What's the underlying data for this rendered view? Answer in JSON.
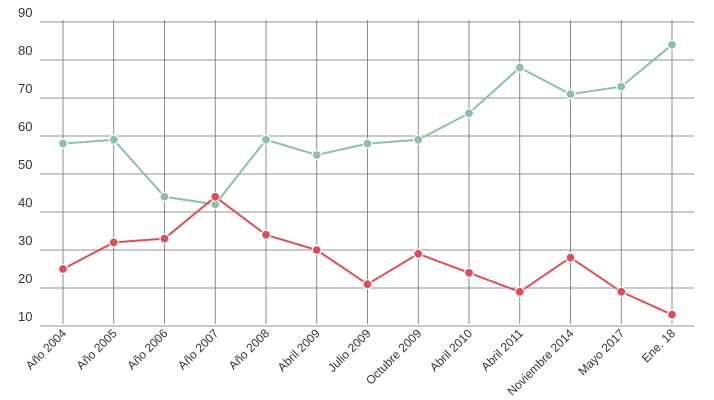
{
  "chart_data": {
    "type": "line",
    "categories": [
      "Año 2004",
      "Año 2005",
      "Año 2006",
      "Año 2007",
      "Año 2008",
      "Abril 2009",
      "Julio 2009",
      "Octubre 2009",
      "Abril 2010",
      "Abril 2011",
      "Noviembre 2014",
      "Mayo 2017",
      "Ene. 18"
    ],
    "series": [
      {
        "color": "#8fbfa5",
        "values": [
          58,
          59,
          44,
          42,
          59,
          55,
          58,
          59,
          66,
          78,
          71,
          73,
          84
        ]
      },
      {
        "color": "#d9505a",
        "values": [
          25,
          32,
          33,
          44,
          34,
          30,
          21,
          29,
          24,
          19,
          28,
          19,
          13
        ]
      }
    ],
    "y_ticks": [
      90,
      80,
      70,
      60,
      50,
      40,
      30,
      20,
      10
    ],
    "ylim": [
      10,
      90
    ],
    "grid": true,
    "title": "",
    "xlabel": "",
    "ylabel": ""
  }
}
